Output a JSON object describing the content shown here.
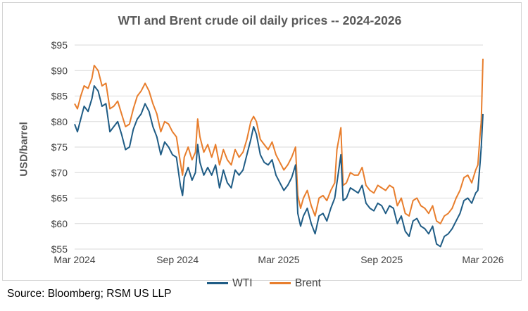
{
  "title": "WTI and Brent crude oil daily prices -- 2024-2026",
  "ylabel": "USD/barrel",
  "source": "Source: Bloomberg; RSM US LLP",
  "chart_data": {
    "type": "line",
    "title": "WTI and Brent crude oil daily prices -- 2024-2026",
    "xlabel": "",
    "ylabel": "USD/barrel",
    "ylim": [
      55,
      95
    ],
    "yticks": [
      "$55",
      "$60",
      "$65",
      "$70",
      "$75",
      "$80",
      "$85",
      "$90",
      "$95"
    ],
    "ytick_values": [
      55,
      60,
      65,
      70,
      75,
      80,
      85,
      90,
      95
    ],
    "xlim": [
      "2024-03-01",
      "2026-03-01"
    ],
    "xticks": [
      "Mar 2024",
      "Sep 2024",
      "Mar 2025",
      "Sep 2025",
      "Mar 2026"
    ],
    "xtick_dates": [
      "2024-03-01",
      "2024-09-01",
      "2025-03-01",
      "2025-09-01",
      "2026-03-01"
    ],
    "grid": true,
    "legend_position": "bottom",
    "series": [
      {
        "name": "WTI",
        "color": "#1f5c85",
        "x": [
          "2024-03-01",
          "2024-03-06",
          "2024-03-12",
          "2024-03-18",
          "2024-03-25",
          "2024-04-01",
          "2024-04-05",
          "2024-04-12",
          "2024-04-19",
          "2024-04-26",
          "2024-05-03",
          "2024-05-10",
          "2024-05-17",
          "2024-05-24",
          "2024-05-31",
          "2024-06-07",
          "2024-06-14",
          "2024-06-21",
          "2024-06-28",
          "2024-07-05",
          "2024-07-12",
          "2024-07-19",
          "2024-07-26",
          "2024-08-02",
          "2024-08-09",
          "2024-08-16",
          "2024-08-23",
          "2024-08-30",
          "2024-09-06",
          "2024-09-10",
          "2024-09-13",
          "2024-09-20",
          "2024-09-27",
          "2024-10-03",
          "2024-10-07",
          "2024-10-11",
          "2024-10-18",
          "2024-10-25",
          "2024-11-01",
          "2024-11-08",
          "2024-11-15",
          "2024-11-22",
          "2024-11-29",
          "2024-12-06",
          "2024-12-13",
          "2024-12-20",
          "2024-12-27",
          "2025-01-03",
          "2025-01-10",
          "2025-01-15",
          "2025-01-20",
          "2025-01-27",
          "2025-02-03",
          "2025-02-10",
          "2025-02-17",
          "2025-02-24",
          "2025-03-03",
          "2025-03-10",
          "2025-03-17",
          "2025-03-24",
          "2025-03-31",
          "2025-04-04",
          "2025-04-09",
          "2025-04-14",
          "2025-04-21",
          "2025-04-28",
          "2025-05-05",
          "2025-05-12",
          "2025-05-19",
          "2025-05-26",
          "2025-06-02",
          "2025-06-09",
          "2025-06-13",
          "2025-06-20",
          "2025-06-24",
          "2025-06-30",
          "2025-07-07",
          "2025-07-14",
          "2025-07-21",
          "2025-07-28",
          "2025-08-04",
          "2025-08-11",
          "2025-08-18",
          "2025-08-25",
          "2025-09-01",
          "2025-09-08",
          "2025-09-15",
          "2025-09-22",
          "2025-09-29",
          "2025-10-06",
          "2025-10-13",
          "2025-10-20",
          "2025-10-27",
          "2025-11-03",
          "2025-11-10",
          "2025-11-17",
          "2025-11-24",
          "2025-12-01",
          "2025-12-08",
          "2025-12-15",
          "2025-12-22",
          "2025-12-29",
          "2026-01-05",
          "2026-01-12",
          "2026-01-19",
          "2026-01-26",
          "2026-02-02",
          "2026-02-09",
          "2026-02-16",
          "2026-02-20",
          "2026-02-24",
          "2026-02-26",
          "2026-03-01"
        ],
        "values": [
          79.5,
          78.0,
          80.5,
          83.0,
          82.0,
          84.5,
          87.0,
          86.0,
          83.0,
          83.5,
          78.0,
          79.0,
          80.0,
          77.5,
          74.5,
          75.0,
          78.5,
          80.5,
          81.5,
          83.5,
          82.0,
          79.0,
          77.0,
          73.5,
          76.0,
          75.0,
          73.5,
          73.0,
          67.5,
          65.5,
          69.0,
          71.0,
          68.5,
          70.0,
          75.5,
          72.0,
          69.5,
          71.0,
          69.5,
          71.5,
          67.0,
          70.5,
          68.0,
          67.0,
          70.5,
          69.5,
          70.5,
          73.5,
          76.5,
          79.0,
          77.5,
          73.5,
          72.0,
          71.5,
          72.5,
          69.5,
          68.0,
          66.5,
          67.5,
          69.0,
          71.5,
          62.0,
          59.5,
          61.5,
          63.0,
          60.0,
          58.0,
          61.5,
          62.0,
          60.5,
          63.0,
          65.0,
          68.0,
          73.5,
          64.5,
          65.0,
          67.0,
          66.5,
          66.0,
          67.5,
          64.0,
          63.0,
          62.5,
          64.0,
          63.5,
          62.0,
          63.5,
          63.0,
          60.0,
          61.5,
          58.5,
          57.5,
          60.5,
          61.0,
          59.5,
          59.0,
          58.0,
          59.5,
          56.0,
          55.5,
          57.5,
          58.0,
          59.0,
          60.5,
          62.0,
          64.5,
          65.0,
          64.0,
          66.0,
          66.5,
          72.0,
          75.0,
          81.5
        ]
      },
      {
        "name": "Brent",
        "color": "#e87e2d",
        "x": [
          "2024-03-01",
          "2024-03-06",
          "2024-03-12",
          "2024-03-18",
          "2024-03-25",
          "2024-04-01",
          "2024-04-05",
          "2024-04-12",
          "2024-04-19",
          "2024-04-26",
          "2024-05-03",
          "2024-05-10",
          "2024-05-17",
          "2024-05-24",
          "2024-05-31",
          "2024-06-07",
          "2024-06-14",
          "2024-06-21",
          "2024-06-28",
          "2024-07-05",
          "2024-07-12",
          "2024-07-19",
          "2024-07-26",
          "2024-08-02",
          "2024-08-09",
          "2024-08-16",
          "2024-08-23",
          "2024-08-30",
          "2024-09-06",
          "2024-09-10",
          "2024-09-13",
          "2024-09-20",
          "2024-09-27",
          "2024-10-03",
          "2024-10-07",
          "2024-10-11",
          "2024-10-18",
          "2024-10-25",
          "2024-11-01",
          "2024-11-08",
          "2024-11-15",
          "2024-11-22",
          "2024-11-29",
          "2024-12-06",
          "2024-12-13",
          "2024-12-20",
          "2024-12-27",
          "2025-01-03",
          "2025-01-10",
          "2025-01-15",
          "2025-01-20",
          "2025-01-27",
          "2025-02-03",
          "2025-02-10",
          "2025-02-17",
          "2025-02-24",
          "2025-03-03",
          "2025-03-10",
          "2025-03-17",
          "2025-03-24",
          "2025-03-31",
          "2025-04-04",
          "2025-04-09",
          "2025-04-14",
          "2025-04-21",
          "2025-04-28",
          "2025-05-05",
          "2025-05-12",
          "2025-05-19",
          "2025-05-26",
          "2025-06-02",
          "2025-06-09",
          "2025-06-13",
          "2025-06-20",
          "2025-06-24",
          "2025-06-30",
          "2025-07-07",
          "2025-07-14",
          "2025-07-21",
          "2025-07-28",
          "2025-08-04",
          "2025-08-11",
          "2025-08-18",
          "2025-08-25",
          "2025-09-01",
          "2025-09-08",
          "2025-09-15",
          "2025-09-22",
          "2025-09-29",
          "2025-10-06",
          "2025-10-13",
          "2025-10-20",
          "2025-10-27",
          "2025-11-03",
          "2025-11-10",
          "2025-11-17",
          "2025-11-24",
          "2025-12-01",
          "2025-12-08",
          "2025-12-15",
          "2025-12-22",
          "2025-12-29",
          "2026-01-05",
          "2026-01-12",
          "2026-01-19",
          "2026-01-26",
          "2026-02-02",
          "2026-02-09",
          "2026-02-16",
          "2026-02-20",
          "2026-02-24",
          "2026-02-26",
          "2026-03-01"
        ],
        "values": [
          83.5,
          82.5,
          85.0,
          87.0,
          86.5,
          88.5,
          91.0,
          90.0,
          87.0,
          87.5,
          82.5,
          83.0,
          84.0,
          81.5,
          79.0,
          79.5,
          82.5,
          85.0,
          86.0,
          87.5,
          86.0,
          83.5,
          81.5,
          78.0,
          80.0,
          79.5,
          78.0,
          77.0,
          72.0,
          69.5,
          73.0,
          75.0,
          72.5,
          74.0,
          80.5,
          77.0,
          74.0,
          75.5,
          73.0,
          75.5,
          71.5,
          74.5,
          72.5,
          71.5,
          74.5,
          73.0,
          74.0,
          76.5,
          80.0,
          81.0,
          80.0,
          76.5,
          75.5,
          74.5,
          76.0,
          73.5,
          72.0,
          70.5,
          71.5,
          73.0,
          75.0,
          65.5,
          63.0,
          65.0,
          66.5,
          63.5,
          61.5,
          65.0,
          65.5,
          64.5,
          66.5,
          68.0,
          74.5,
          78.8,
          67.5,
          68.0,
          70.0,
          69.5,
          69.5,
          71.0,
          67.5,
          66.5,
          66.0,
          67.5,
          67.0,
          66.5,
          67.5,
          67.0,
          63.5,
          65.0,
          62.0,
          61.5,
          64.5,
          65.0,
          63.5,
          63.0,
          62.0,
          63.5,
          60.5,
          60.0,
          61.5,
          62.0,
          63.0,
          65.0,
          66.5,
          69.0,
          69.5,
          68.0,
          70.5,
          71.5,
          77.5,
          80.0,
          92.3
        ]
      }
    ]
  }
}
